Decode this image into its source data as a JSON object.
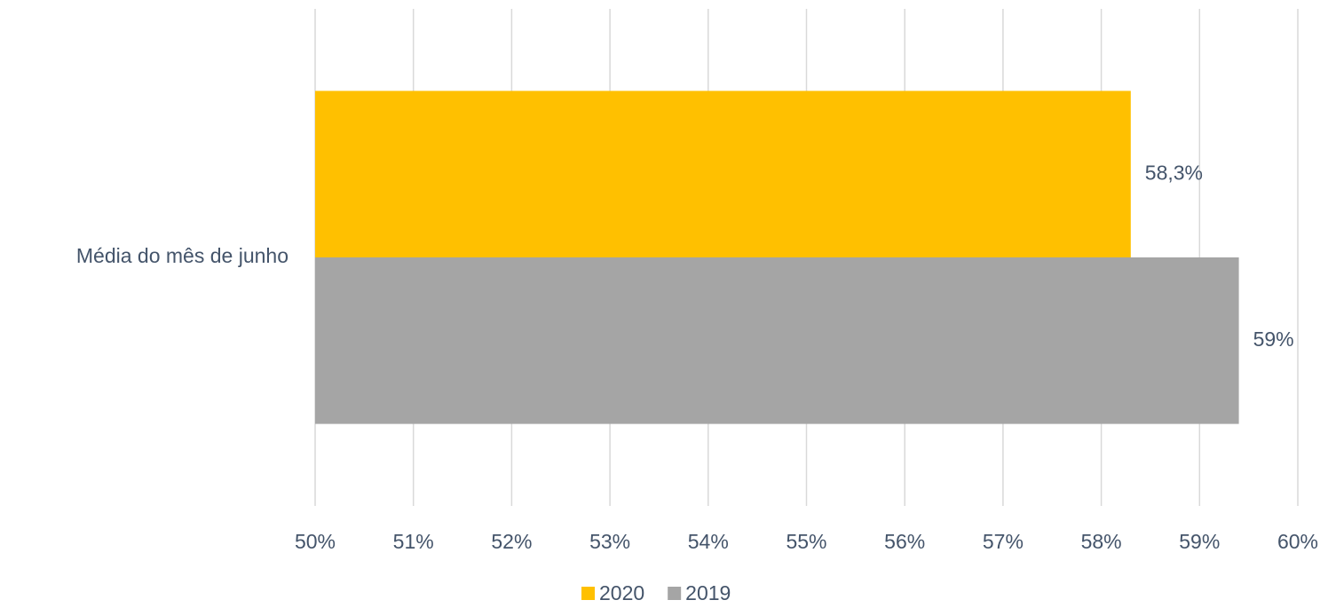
{
  "chart_data": {
    "type": "barh",
    "categories": [
      "Média do mês de junho"
    ],
    "series": [
      {
        "name": "2020",
        "color": "#ffc000",
        "values": [
          58.3
        ],
        "value_labels": [
          "58,3%"
        ]
      },
      {
        "name": "2019",
        "color": "#a5a5a5",
        "values": [
          59.4
        ],
        "value_labels": [
          "59%"
        ]
      }
    ],
    "xlim": [
      50,
      60
    ],
    "xticks": [
      {
        "value": 50,
        "label": "50%"
      },
      {
        "value": 51,
        "label": "51%"
      },
      {
        "value": 52,
        "label": "52%"
      },
      {
        "value": 53,
        "label": "53%"
      },
      {
        "value": 54,
        "label": "54%"
      },
      {
        "value": 55,
        "label": "55%"
      },
      {
        "value": 56,
        "label": "56%"
      },
      {
        "value": 57,
        "label": "57%"
      },
      {
        "value": 58,
        "label": "58%"
      },
      {
        "value": 59,
        "label": "59%"
      },
      {
        "value": 60,
        "label": "60%"
      }
    ],
    "grid": true,
    "legend": "bottom"
  }
}
